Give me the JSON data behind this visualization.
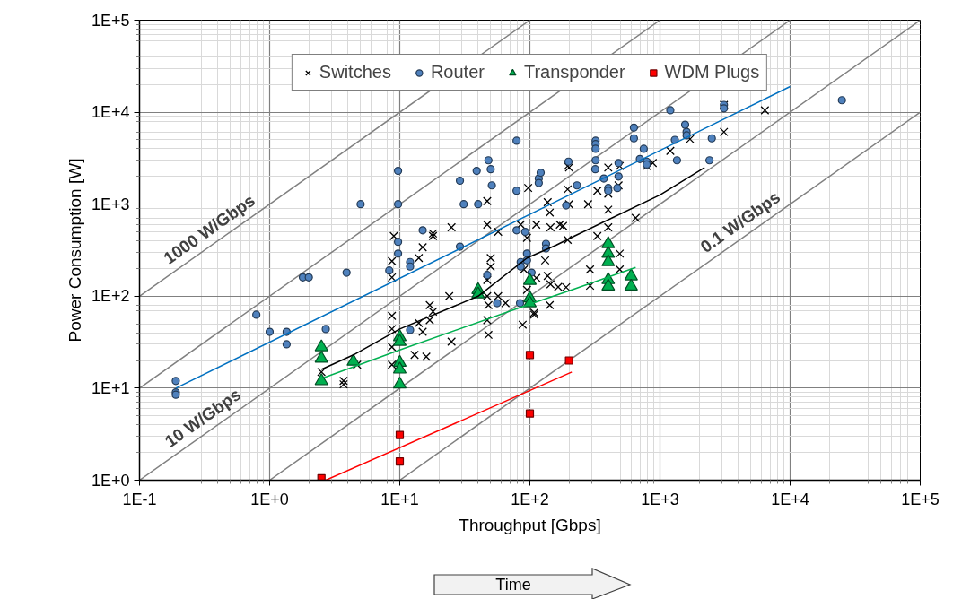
{
  "chart_data": {
    "type": "scatter",
    "xlabel": "Throughput [Gbps]",
    "ylabel": "Power Consumption [W]",
    "log": "xy",
    "grid": true,
    "legend": "top",
    "xlim": [
      0.1,
      100000
    ],
    "ylim": [
      1,
      100000
    ],
    "xticks": [
      {
        "value": 0.1,
        "label": "1E-1"
      },
      {
        "value": 1,
        "label": "1E+0"
      },
      {
        "value": 10,
        "label": "1E+1"
      },
      {
        "value": 100,
        "label": "1E+2"
      },
      {
        "value": 1000,
        "label": "1E+3"
      },
      {
        "value": 10000,
        "label": "1E+4"
      },
      {
        "value": 100000,
        "label": "1E+5"
      }
    ],
    "yticks": [
      {
        "value": 1,
        "label": "1E+0"
      },
      {
        "value": 10,
        "label": "1E+1"
      },
      {
        "value": 100,
        "label": "1E+2"
      },
      {
        "value": 1000,
        "label": "1E+3"
      },
      {
        "value": 10000,
        "label": "1E+4"
      },
      {
        "value": 100000,
        "label": "1E+5"
      }
    ],
    "series": [
      {
        "type": "line",
        "name": "1000 W/Gbps",
        "color": "#808080",
        "x": [
          0.1,
          100
        ],
        "values": [
          100,
          100000
        ]
      },
      {
        "type": "line",
        "color": "#808080",
        "x": [
          0.1,
          1000
        ],
        "values": [
          10,
          100000
        ]
      },
      {
        "type": "line",
        "name": "10 W/Gbps",
        "color": "#808080",
        "x": [
          0.1,
          10000
        ],
        "values": [
          1,
          100000
        ]
      },
      {
        "type": "line",
        "color": "#808080",
        "x": [
          1,
          100000
        ],
        "values": [
          1,
          100000
        ]
      },
      {
        "type": "line",
        "name": "0.1 W/Gbps",
        "color": "#808080",
        "x": [
          10,
          100000
        ],
        "values": [
          1,
          10000
        ]
      },
      {
        "name": "Switches",
        "color": "#000000",
        "marker": "cross",
        "x": [
          9,
          8.7,
          8.7,
          8.7,
          8.7,
          8.7,
          8.7,
          2.5,
          4.7,
          3.7,
          3.7,
          24,
          17,
          18,
          17,
          14,
          15,
          13,
          16,
          25,
          47,
          47,
          48,
          47,
          48,
          57,
          65,
          88,
          108,
          142,
          25,
          18,
          18,
          15,
          14,
          47,
          47,
          57,
          50,
          50,
          97,
          85,
          95,
          112,
          137,
          144,
          170,
          195,
          195,
          195,
          131,
          137,
          144,
          165,
          112,
          95,
          108,
          90,
          142,
          200,
          400,
          490,
          790,
          880,
          330,
          400,
          480,
          200,
          280,
          400,
          180,
          400,
          330,
          650,
          490,
          290,
          490,
          290,
          190,
          1700,
          1200,
          3100,
          3100,
          6400
        ],
        "values": [
          450,
          240,
          160,
          61,
          44,
          28,
          18,
          15,
          18,
          12,
          11,
          100,
          80,
          68,
          55,
          51,
          41,
          23,
          22,
          32,
          150,
          100,
          80,
          55,
          38,
          100,
          84,
          49,
          66,
          80,
          560,
          480,
          450,
          340,
          260,
          1080,
          600,
          500,
          260,
          210,
          1500,
          600,
          430,
          600,
          1050,
          560,
          600,
          410,
          2600,
          1450,
          245,
          166,
          135,
          126,
          158,
          117,
          63,
          195,
          810,
          2500,
          2500,
          2600,
          2600,
          2800,
          1400,
          1300,
          1600,
          1000,
          1000,
          870,
          580,
          560,
          450,
          710,
          290,
          195,
          195,
          130,
          125,
          5100,
          3800,
          6100,
          12000,
          10500
        ]
      },
      {
        "name": "Router",
        "color": "#4f81bd",
        "marker": "circle",
        "x": [
          0.19,
          0.19,
          0.19,
          0.79,
          1,
          1.35,
          1.35,
          2.7,
          1.8,
          2,
          3.9,
          5,
          9.7,
          9.7,
          9.7,
          9.7,
          8.3,
          12,
          12,
          15,
          29,
          31,
          29,
          39,
          40,
          48,
          50,
          51,
          79,
          79,
          79,
          92,
          117,
          117,
          121,
          198,
          190,
          47,
          56,
          85,
          85,
          95,
          95,
          103,
          84,
          133,
          133,
          12,
          230,
          320,
          320,
          320,
          320,
          318,
          370,
          400,
          400,
          470,
          480,
          480,
          630,
          630,
          750,
          700,
          790,
          790,
          1200,
          1300,
          1350,
          1560,
          1600,
          1600,
          2500,
          2400,
          3100,
          3100,
          25000
        ],
        "values": [
          12,
          9,
          8.5,
          63,
          41,
          41,
          30,
          44,
          160,
          160,
          180,
          1000,
          2300,
          1000,
          390,
          290,
          190,
          235,
          210,
          520,
          1800,
          1000,
          345,
          2300,
          1000,
          3000,
          2400,
          1600,
          4900,
          1400,
          520,
          500,
          1900,
          1700,
          2200,
          2900,
          970,
          170,
          84,
          235,
          210,
          290,
          245,
          180,
          84,
          370,
          330,
          43,
          1600,
          4900,
          4500,
          4000,
          3000,
          2400,
          1900,
          1500,
          1400,
          1500,
          2000,
          2800,
          6800,
          5200,
          4000,
          3100,
          2900,
          2700,
          10500,
          5000,
          3000,
          7300,
          6100,
          5600,
          5200,
          3000,
          12000,
          11000,
          13500
        ]
      },
      {
        "name": "Transponder",
        "color": "#00b050",
        "marker": "triangle",
        "x": [
          2.5,
          2.5,
          2.5,
          4.4,
          10,
          10,
          10,
          10,
          10,
          40,
          40,
          100,
          100,
          100,
          400,
          400,
          400,
          400,
          400,
          600,
          600
        ],
        "values": [
          28,
          21,
          12,
          19.5,
          36,
          32,
          19,
          16,
          11,
          117,
          105,
          147,
          95,
          84,
          370,
          290,
          235,
          150,
          128,
          165,
          128
        ]
      },
      {
        "name": "WDM Plugs",
        "color": "#ff0000",
        "marker": "square",
        "x": [
          2.5,
          10,
          10,
          100,
          100,
          200
        ],
        "values": [
          1.05,
          3.1,
          1.6,
          23,
          5.3,
          20
        ]
      },
      {
        "type": "line",
        "color": "#0070c0",
        "x": [
          0.19,
          10000
        ],
        "values": [
          10,
          19000
        ]
      },
      {
        "type": "line",
        "color": "#000000",
        "x": [
          2.5,
          4.4,
          10,
          40,
          95,
          160,
          220,
          360,
          1000,
          2200
        ],
        "values": [
          16,
          23,
          44,
          100,
          260,
          360,
          450,
          630,
          1260,
          2500
        ]
      },
      {
        "type": "line",
        "color": "#00b050",
        "x": [
          2.6,
          10,
          95,
          220,
          650
        ],
        "values": [
          13,
          26,
          80,
          120,
          205
        ]
      },
      {
        "type": "line",
        "color": "#ff0000",
        "x": [
          2.7,
          210
        ],
        "values": [
          1.0,
          15
        ]
      }
    ],
    "annotations": [
      "Time"
    ]
  }
}
